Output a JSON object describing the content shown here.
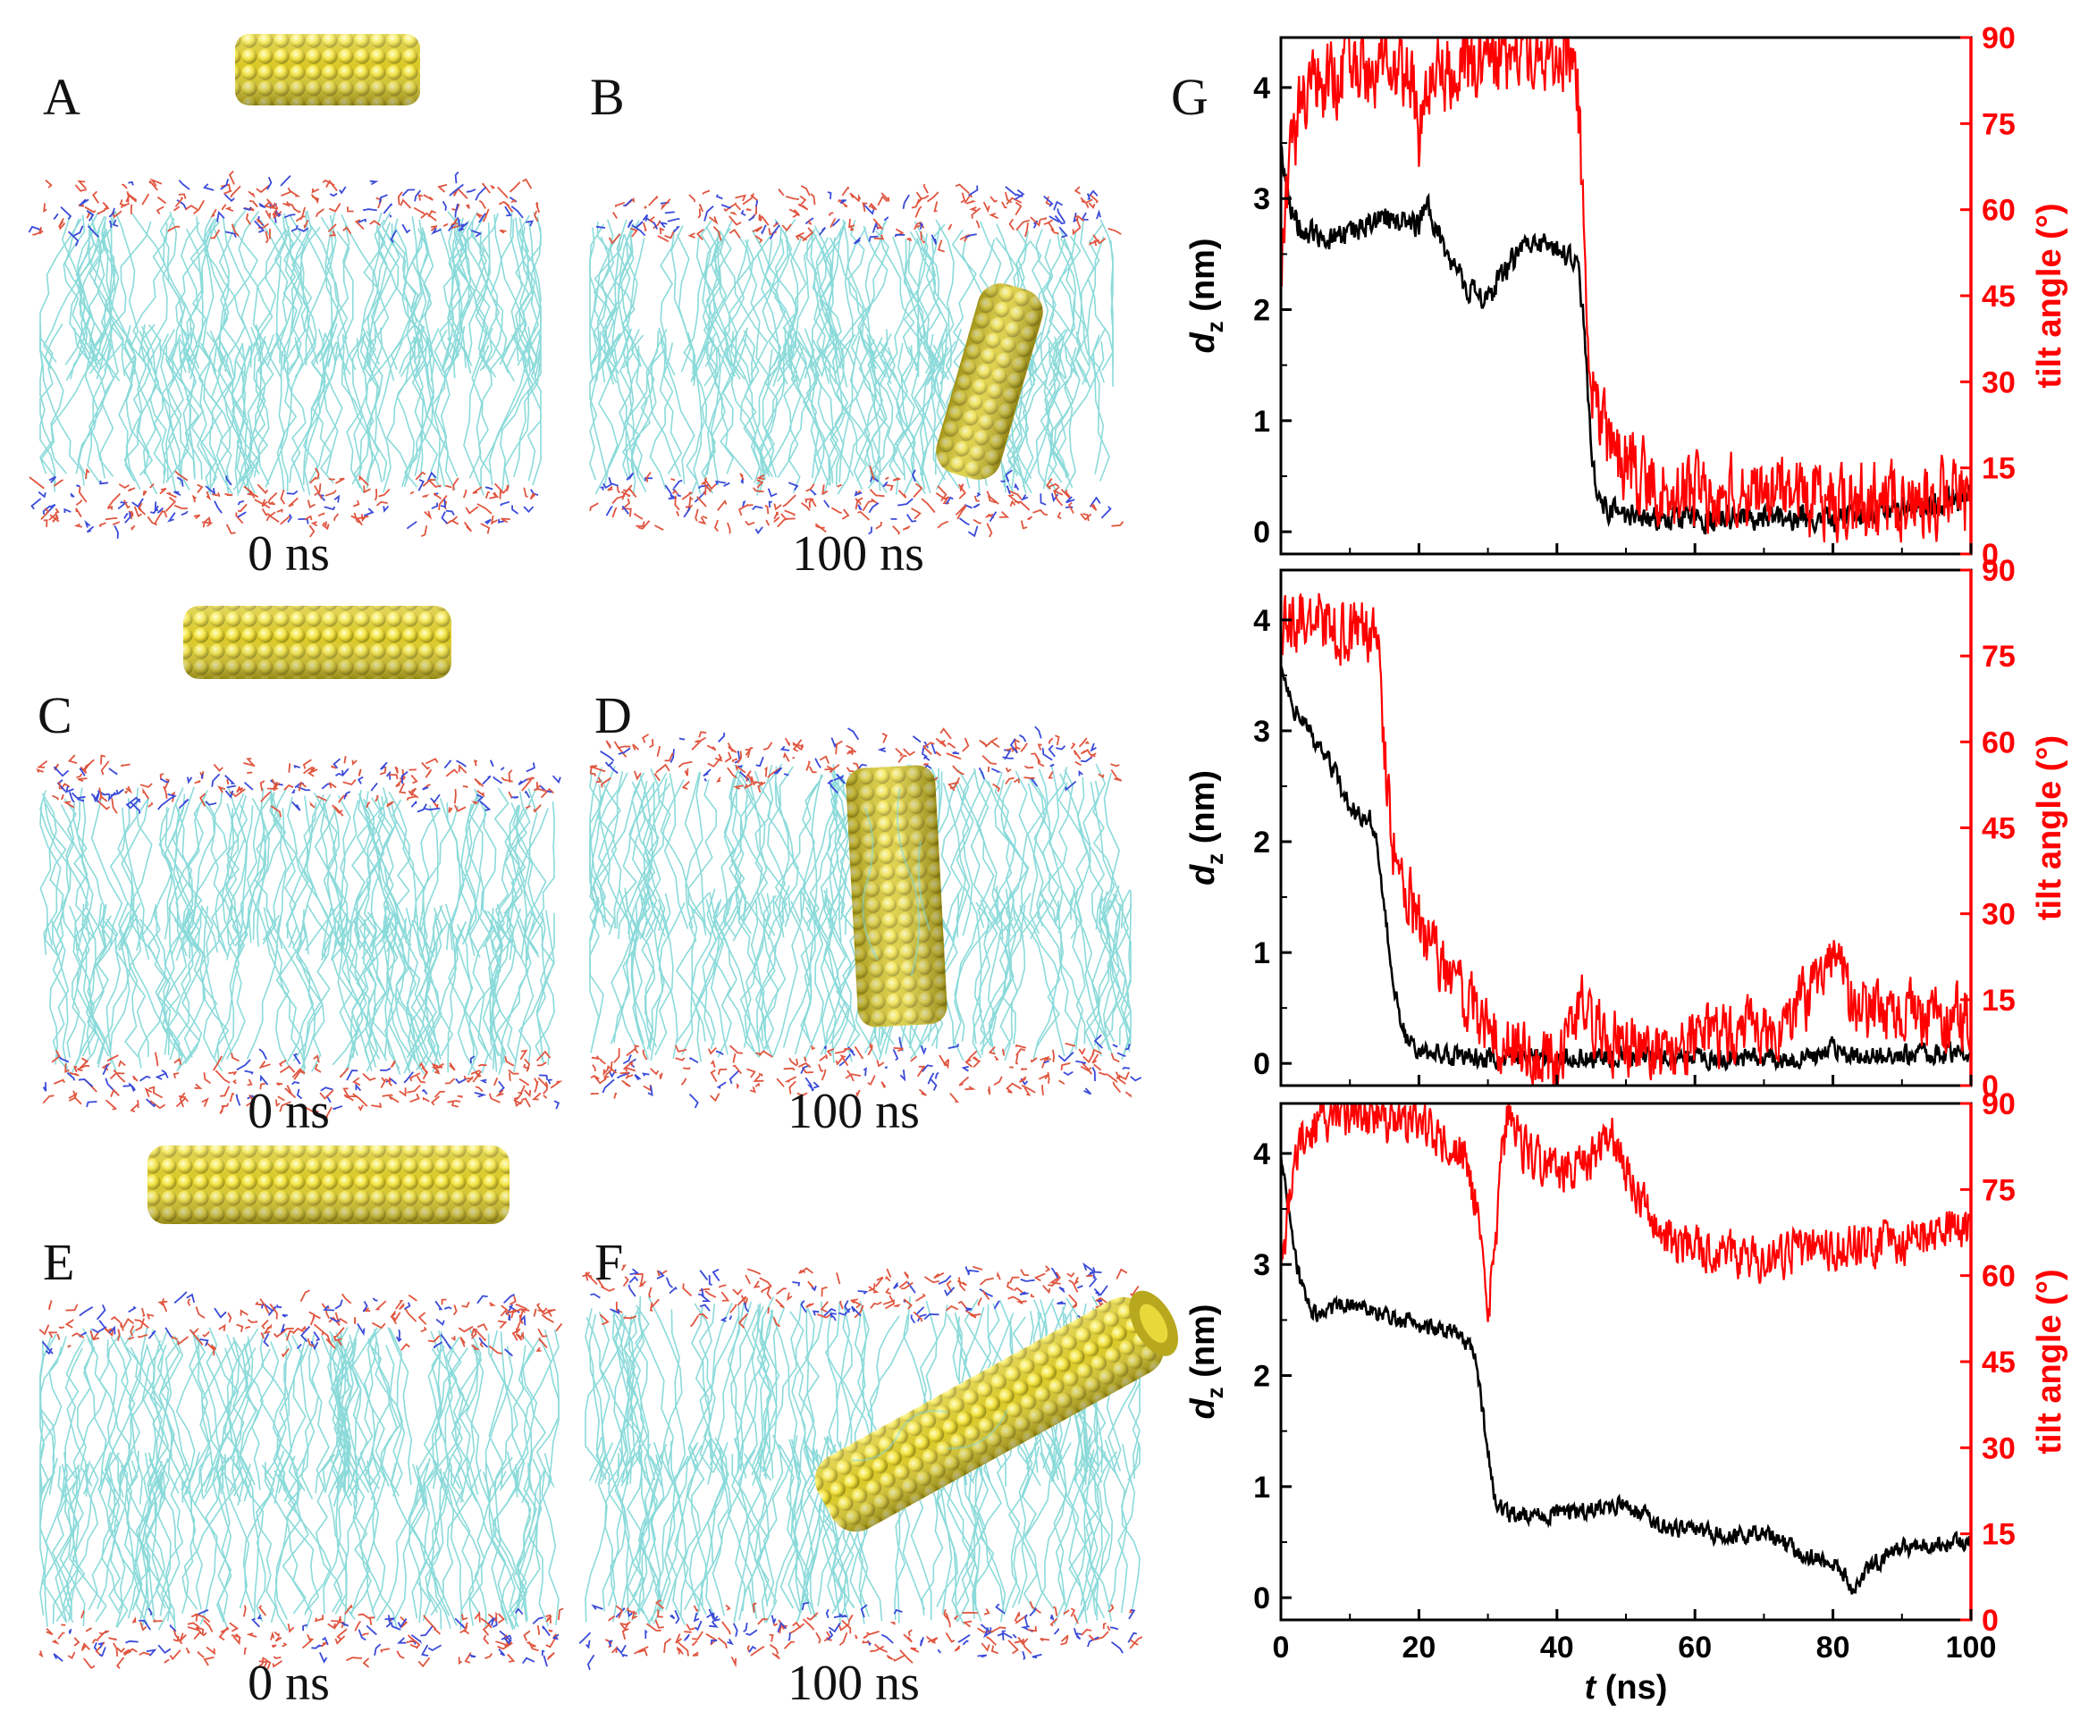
{
  "figure": {
    "snapshots": [
      {
        "label": "A",
        "time": "0 ns",
        "tube": "short",
        "state": "above"
      },
      {
        "label": "B",
        "time": "100 ns",
        "tube": "short",
        "state": "inserted"
      },
      {
        "label": "C",
        "time": "0 ns",
        "tube": "medium",
        "state": "above"
      },
      {
        "label": "D",
        "time": "100 ns",
        "tube": "medium",
        "state": "inserted"
      },
      {
        "label": "E",
        "time": "0 ns",
        "tube": "long",
        "state": "above"
      },
      {
        "label": "F",
        "time": "100 ns",
        "tube": "long",
        "state": "inserted"
      }
    ],
    "graph_label": "G"
  },
  "colors": {
    "dz": "#000000",
    "tilt": "#ff0000",
    "tube": "#f2e23a",
    "lipid_tail": "#7fd6d6",
    "head_red": "#e0553f",
    "head_blue": "#3a4ad8"
  },
  "chart_data": [
    {
      "type": "line",
      "panel": "G-top",
      "xlim": [
        0,
        100
      ],
      "ylim": [
        -0.2,
        4.45
      ],
      "y2lim": [
        0,
        90
      ],
      "ylabel": "d",
      "ylabel_sub": "z",
      "ylabel_unit": " (nm)",
      "y2label": "tilt angle (°)",
      "y_ticks": [
        "0",
        "1",
        "2",
        "3",
        "4"
      ],
      "y2_ticks": [
        "0",
        "15",
        "30",
        "45",
        "60",
        "75",
        "90"
      ],
      "x_ticks": [],
      "series": [
        {
          "name": "d_z (nm)",
          "axis": "left",
          "color": "#000000",
          "noise": 0.1,
          "points": [
            [
              0,
              3.5
            ],
            [
              1,
              3.0
            ],
            [
              3,
              2.7
            ],
            [
              10,
              2.65
            ],
            [
              15,
              2.85
            ],
            [
              20,
              2.75
            ],
            [
              21,
              2.95
            ],
            [
              24,
              2.5
            ],
            [
              27,
              2.2
            ],
            [
              30,
              2.1
            ],
            [
              33,
              2.4
            ],
            [
              36,
              2.6
            ],
            [
              40,
              2.55
            ],
            [
              43,
              2.45
            ],
            [
              44,
              1.8
            ],
            [
              45,
              0.7
            ],
            [
              46,
              0.25
            ],
            [
              50,
              0.15
            ],
            [
              60,
              0.1
            ],
            [
              70,
              0.15
            ],
            [
              80,
              0.1
            ],
            [
              90,
              0.2
            ],
            [
              100,
              0.3
            ]
          ]
        },
        {
          "name": "tilt angle (°)",
          "axis": "right",
          "color": "#ff0000",
          "noise": 6,
          "points": [
            [
              0,
              48
            ],
            [
              1,
              65
            ],
            [
              3,
              80
            ],
            [
              10,
              85
            ],
            [
              19,
              84
            ],
            [
              20,
              70
            ],
            [
              21,
              82
            ],
            [
              30,
              86
            ],
            [
              42,
              86
            ],
            [
              43,
              80
            ],
            [
              44,
              55
            ],
            [
              45,
              30
            ],
            [
              48,
              18
            ],
            [
              55,
              11
            ],
            [
              70,
              10
            ],
            [
              85,
              9
            ],
            [
              100,
              10
            ]
          ]
        }
      ]
    },
    {
      "type": "line",
      "panel": "G-middle",
      "xlim": [
        0,
        100
      ],
      "ylim": [
        -0.2,
        4.45
      ],
      "y2lim": [
        0,
        90
      ],
      "ylabel": "d",
      "ylabel_sub": "z",
      "ylabel_unit": " (nm)",
      "y2label": "tilt angle (°)",
      "y_ticks": [
        "0",
        "1",
        "2",
        "3",
        "4"
      ],
      "y2_ticks": [
        "0",
        "15",
        "30",
        "45",
        "60",
        "75",
        "90"
      ],
      "x_ticks": [],
      "series": [
        {
          "name": "d_z (nm)",
          "axis": "left",
          "color": "#000000",
          "noise": 0.08,
          "points": [
            [
              0,
              3.6
            ],
            [
              2,
              3.2
            ],
            [
              5,
              2.9
            ],
            [
              8,
              2.6
            ],
            [
              10,
              2.3
            ],
            [
              13,
              2.2
            ],
            [
              14,
              2.0
            ],
            [
              15,
              1.4
            ],
            [
              16,
              0.8
            ],
            [
              17,
              0.5
            ],
            [
              18,
              0.25
            ],
            [
              20,
              0.1
            ],
            [
              30,
              0.05
            ],
            [
              40,
              0.05
            ],
            [
              50,
              0.05
            ],
            [
              60,
              0.05
            ],
            [
              78,
              0.05
            ],
            [
              80,
              0.15
            ],
            [
              82,
              0.05
            ],
            [
              100,
              0.1
            ]
          ]
        },
        {
          "name": "tilt angle (°)",
          "axis": "right",
          "color": "#ff0000",
          "noise": 5,
          "points": [
            [
              0,
              80
            ],
            [
              5,
              82
            ],
            [
              10,
              78
            ],
            [
              14,
              80
            ],
            [
              15,
              60
            ],
            [
              16,
              42
            ],
            [
              20,
              28
            ],
            [
              25,
              18
            ],
            [
              30,
              10
            ],
            [
              35,
              6
            ],
            [
              40,
              4
            ],
            [
              44,
              14
            ],
            [
              47,
              8
            ],
            [
              55,
              6
            ],
            [
              65,
              9
            ],
            [
              72,
              10
            ],
            [
              77,
              16
            ],
            [
              80,
              22
            ],
            [
              83,
              14
            ],
            [
              90,
              12
            ],
            [
              100,
              12
            ]
          ]
        }
      ]
    },
    {
      "type": "line",
      "panel": "G-bottom",
      "xlim": [
        0,
        100
      ],
      "ylim": [
        -0.2,
        4.45
      ],
      "y2lim": [
        0,
        90
      ],
      "ylabel": "d",
      "ylabel_sub": "z",
      "ylabel_unit": " (nm)",
      "y2label": "tilt angle (°)",
      "xlabel": "t",
      "xlabel_unit": " (ns)",
      "y_ticks": [
        "0",
        "1",
        "2",
        "3",
        "4"
      ],
      "y2_ticks": [
        "0",
        "15",
        "30",
        "45",
        "60",
        "75",
        "90"
      ],
      "x_ticks": [
        "0",
        "20",
        "40",
        "60",
        "80",
        "100"
      ],
      "series": [
        {
          "name": "d_z (nm)",
          "axis": "left",
          "color": "#000000",
          "noise": 0.07,
          "points": [
            [
              0,
              4.0
            ],
            [
              1,
              3.5
            ],
            [
              2,
              3.1
            ],
            [
              3,
              2.8
            ],
            [
              5,
              2.55
            ],
            [
              10,
              2.65
            ],
            [
              15,
              2.55
            ],
            [
              20,
              2.45
            ],
            [
              25,
              2.4
            ],
            [
              28,
              2.2
            ],
            [
              29,
              1.8
            ],
            [
              30,
              1.3
            ],
            [
              31,
              0.9
            ],
            [
              33,
              0.75
            ],
            [
              40,
              0.75
            ],
            [
              50,
              0.85
            ],
            [
              55,
              0.65
            ],
            [
              65,
              0.55
            ],
            [
              70,
              0.6
            ],
            [
              75,
              0.4
            ],
            [
              80,
              0.3
            ],
            [
              83,
              0.1
            ],
            [
              86,
              0.3
            ],
            [
              90,
              0.45
            ],
            [
              100,
              0.5
            ]
          ]
        },
        {
          "name": "tilt angle (°)",
          "axis": "right",
          "color": "#ff0000",
          "noise": 3.5,
          "points": [
            [
              0,
              60
            ],
            [
              1,
              70
            ],
            [
              3,
              85
            ],
            [
              10,
              88
            ],
            [
              20,
              86
            ],
            [
              26,
              82
            ],
            [
              29,
              70
            ],
            [
              30,
              55
            ],
            [
              31,
              62
            ],
            [
              32,
              80
            ],
            [
              33,
              90
            ],
            [
              35,
              82
            ],
            [
              40,
              78
            ],
            [
              45,
              80
            ],
            [
              48,
              85
            ],
            [
              50,
              78
            ],
            [
              53,
              72
            ],
            [
              56,
              66
            ],
            [
              60,
              65
            ],
            [
              70,
              63
            ],
            [
              80,
              65
            ],
            [
              90,
              66
            ],
            [
              100,
              68
            ]
          ]
        }
      ]
    }
  ]
}
